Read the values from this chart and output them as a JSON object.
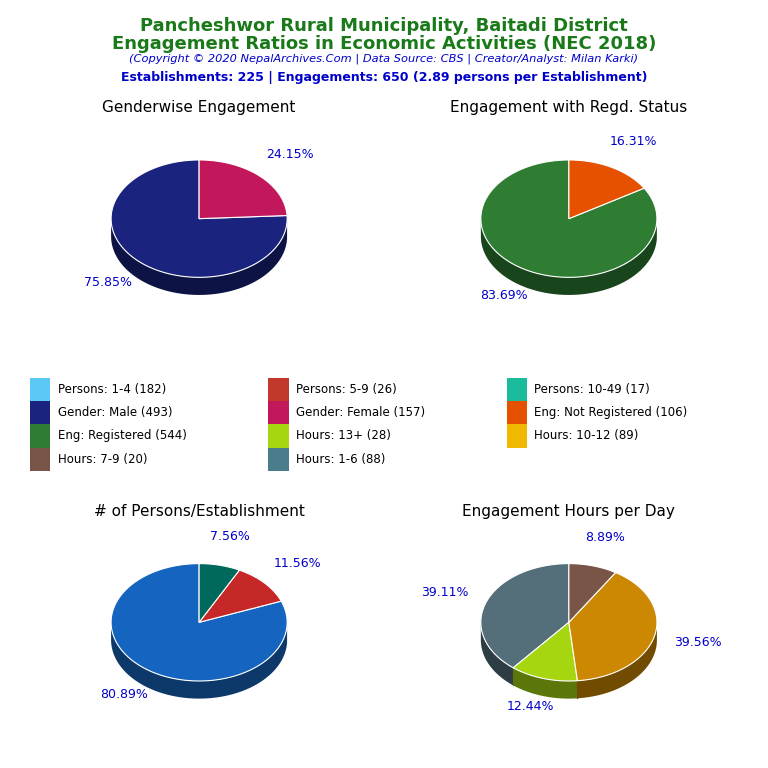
{
  "title_line1": "Pancheshwor Rural Municipality, Baitadi District",
  "title_line2": "Engagement Ratios in Economic Activities (NEC 2018)",
  "subtitle": "(Copyright © 2020 NepalArchives.Com | Data Source: CBS | Creator/Analyst: Milan Karki)",
  "stats_line": "Establishments: 225 | Engagements: 650 (2.89 persons per Establishment)",
  "title_color": "#1a7a1a",
  "subtitle_color": "#0000cc",
  "stats_color": "#0000cc",
  "pie1_title": "Genderwise Engagement",
  "pie1_values": [
    75.85,
    24.15
  ],
  "pie1_colors": [
    "#1a237e",
    "#c2185b"
  ],
  "pie1_labels": [
    "75.85%",
    "24.15%"
  ],
  "pie1_startangle": 90,
  "pie2_title": "Engagement with Regd. Status",
  "pie2_values": [
    83.69,
    16.31
  ],
  "pie2_colors": [
    "#2e7d32",
    "#e65100"
  ],
  "pie2_labels": [
    "83.69%",
    "16.31%"
  ],
  "pie2_startangle": 90,
  "pie3_title": "# of Persons/Establishment",
  "pie3_values": [
    80.89,
    11.56,
    7.56
  ],
  "pie3_colors": [
    "#1565c0",
    "#c62828",
    "#00695c"
  ],
  "pie3_labels": [
    "80.89%",
    "11.56%",
    "7.56%"
  ],
  "pie3_startangle": 90,
  "pie4_title": "Engagement Hours per Day",
  "pie4_values": [
    39.11,
    12.44,
    39.56,
    8.89
  ],
  "pie4_colors": [
    "#546e7a",
    "#a5d610",
    "#cc8800",
    "#795548"
  ],
  "pie4_labels": [
    "39.11%",
    "12.44%",
    "39.56%",
    "8.89%"
  ],
  "pie4_startangle": 90,
  "label_color": "#0000cc",
  "legend_items": [
    {
      "label": "Persons: 1-4 (182)",
      "color": "#5bc8f5"
    },
    {
      "label": "Persons: 5-9 (26)",
      "color": "#c0392b"
    },
    {
      "label": "Persons: 10-49 (17)",
      "color": "#1abc9c"
    },
    {
      "label": "Gender: Male (493)",
      "color": "#1a237e"
    },
    {
      "label": "Gender: Female (157)",
      "color": "#c2185b"
    },
    {
      "label": "Eng: Not Registered (106)",
      "color": "#e65100"
    },
    {
      "label": "Eng: Registered (544)",
      "color": "#2e7d32"
    },
    {
      "label": "Hours: 13+ (28)",
      "color": "#a5d610"
    },
    {
      "label": "Hours: 10-12 (89)",
      "color": "#f0b800"
    },
    {
      "label": "Hours: 7-9 (20)",
      "color": "#795548"
    },
    {
      "label": "Hours: 1-6 (88)",
      "color": "#4a7c8c"
    }
  ]
}
